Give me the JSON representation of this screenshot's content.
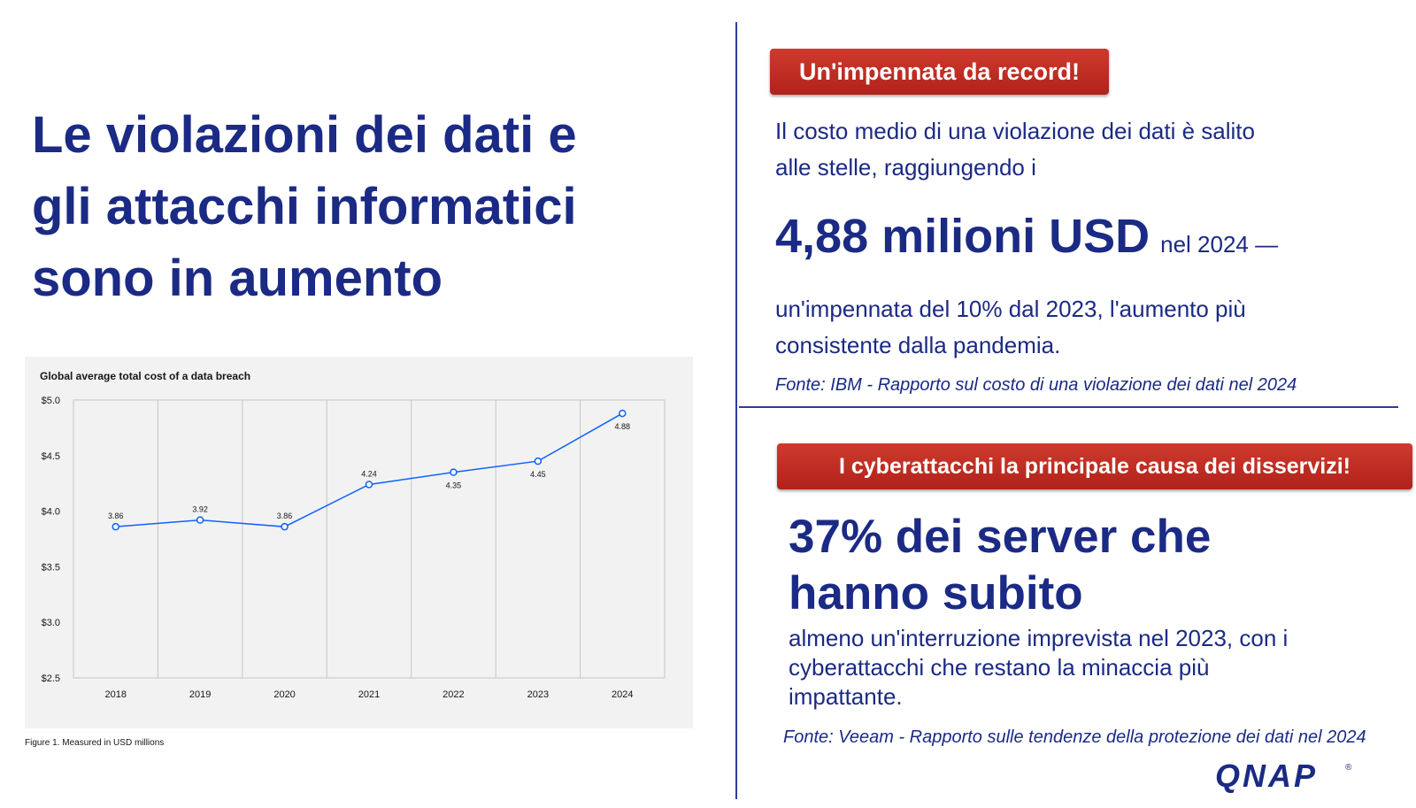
{
  "title": "Le violazioni dei dati e\ngli attacchi informatici\nsono in aumento",
  "chart_data": {
    "type": "line",
    "title": "Global average total cost of a data breach",
    "caption": "Figure 1. Measured in USD millions",
    "categories": [
      "2018",
      "2019",
      "2020",
      "2021",
      "2022",
      "2023",
      "2024"
    ],
    "values": [
      3.86,
      3.92,
      3.86,
      4.24,
      4.35,
      4.45,
      4.88
    ],
    "data_labels": [
      "3.86",
      "3.92",
      "3.86",
      "4.24",
      "4.35",
      "4.45",
      "4.88"
    ],
    "y_ticks": [
      "$2.5",
      "$3.0",
      "$3.5",
      "$4.0",
      "$4.5",
      "$5.0"
    ],
    "y_tick_values": [
      2.5,
      3.0,
      3.5,
      4.0,
      4.5,
      5.0
    ],
    "ylim": [
      2.5,
      5.0
    ],
    "grid": true,
    "line_color": "#0f62fe"
  },
  "section1": {
    "banner": "Un'impennata da record!",
    "paragraph": "Il costo medio di una violazione dei dati è salito\nalle stelle, raggiungendo i",
    "big_number": "4,88 milioni USD",
    "year_text": "nel 2024 —",
    "paragraph2": "un'impennata del 10% dal 2023, l'aumento più\nconsistente dalla pandemia.",
    "source": "Fonte: IBM - Rapporto sul costo di una violazione dei dati nel 2024"
  },
  "section2": {
    "banner": "I cyberattacchi la principale causa dei disservizi!",
    "stat": "37% dei server che\nhanno subito",
    "paragraph": "almeno un'interruzione imprevista nel 2023, con i\ncyberattacchi che restano la minaccia più\nimpattante.",
    "source": "Fonte: Veeam - Rapporto sulle tendenze della protezione dei dati nel 2024"
  },
  "logo": {
    "text": "QNAP",
    "registered": "®"
  },
  "colors": {
    "navy": "#1b2a84",
    "banner_red": "#c0291f",
    "divider": "#2a3ea0",
    "chart_bg": "#f2f2f2"
  }
}
